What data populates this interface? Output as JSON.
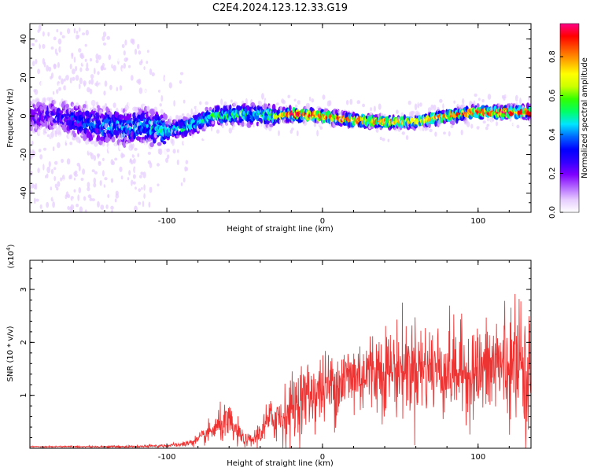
{
  "title": "C2E4.2024.123.12.33.G19",
  "chart_data": [
    {
      "type": "heatmap",
      "xlabel": "Height of straight line (km)",
      "ylabel": "Frequency (Hz)",
      "xlim": [
        -188,
        134
      ],
      "ylim": [
        -50,
        48
      ],
      "x_ticks": [
        -100,
        0,
        100
      ],
      "y_ticks": [
        -40,
        -20,
        0,
        20,
        40
      ],
      "colorbar": {
        "label": "Normalized spectral amplitude",
        "range": [
          0,
          0.97
        ],
        "ticks": [
          "0.0",
          "0.2",
          "0.4",
          "0.6",
          "0.8"
        ],
        "colormap": [
          "#ffffff",
          "#e6ccff",
          "#b366ff",
          "#7f00ff",
          "#3300ff",
          "#0000ff",
          "#0066ff",
          "#00e5ff",
          "#00ff66",
          "#33ff00",
          "#ccff00",
          "#ffff00",
          "#ffaa00",
          "#ff5500",
          "#ff0000",
          "#ff0088"
        ]
      },
      "ridge": {
        "x": [
          -188,
          -170,
          -150,
          -130,
          -115,
          -100,
          -85,
          -70,
          -50,
          -30,
          -20,
          0,
          20,
          40,
          60,
          80,
          100,
          120,
          134
        ],
        "freq_center": [
          0,
          0,
          -4,
          -6,
          -5,
          -8,
          -5,
          0,
          1,
          0,
          1,
          0,
          -2,
          -3,
          -3,
          0,
          2,
          2,
          2
        ],
        "peak_amplitude": [
          0.25,
          0.3,
          0.4,
          0.45,
          0.45,
          0.5,
          0.5,
          0.55,
          0.55,
          0.6,
          0.9,
          0.85,
          0.8,
          0.8,
          0.7,
          0.8,
          0.85,
          0.9,
          0.85
        ]
      }
    },
    {
      "type": "line",
      "xlabel": "Height of straight line (km)",
      "ylabel": "SNR (10 * v/v)",
      "y_multiplier": "(x10⁴)",
      "multiplier_base": "(x10",
      "multiplier_exp": "4",
      "multiplier_close": ")",
      "xlim": [
        -188,
        134
      ],
      "ylim": [
        0,
        3.55
      ],
      "x_ticks": [
        -100,
        0,
        100
      ],
      "y_ticks": [
        1,
        2,
        3
      ],
      "color": "#ee3333",
      "series_envelope": {
        "x": [
          -188,
          -120,
          -100,
          -90,
          -80,
          -75,
          -70,
          -65,
          -60,
          -55,
          -50,
          -45,
          -40,
          -35,
          -30,
          -25,
          -20,
          -15,
          -10,
          -5,
          0,
          10,
          20,
          30,
          40,
          50,
          60,
          70,
          80,
          90,
          100,
          110,
          113,
          120,
          125,
          130,
          134
        ],
        "mean": [
          0.03,
          0.03,
          0.05,
          0.07,
          0.15,
          0.25,
          0.35,
          0.45,
          0.45,
          0.3,
          0.15,
          0.15,
          0.3,
          0.5,
          0.6,
          0.6,
          0.75,
          0.9,
          1.0,
          1.05,
          1.1,
          1.25,
          1.35,
          1.45,
          1.5,
          1.5,
          1.55,
          1.5,
          1.5,
          1.45,
          1.45,
          1.5,
          1.6,
          1.5,
          1.45,
          1.45,
          1.45
        ],
        "spread": [
          0.01,
          0.02,
          0.03,
          0.04,
          0.1,
          0.15,
          0.22,
          0.3,
          0.35,
          0.25,
          0.1,
          0.12,
          0.25,
          0.35,
          0.45,
          0.5,
          0.55,
          0.6,
          0.6,
          0.6,
          0.6,
          0.65,
          0.7,
          0.7,
          0.75,
          0.8,
          0.8,
          0.8,
          0.8,
          0.8,
          0.8,
          0.85,
          1.0,
          0.85,
          0.9,
          0.9,
          0.9
        ]
      }
    }
  ]
}
